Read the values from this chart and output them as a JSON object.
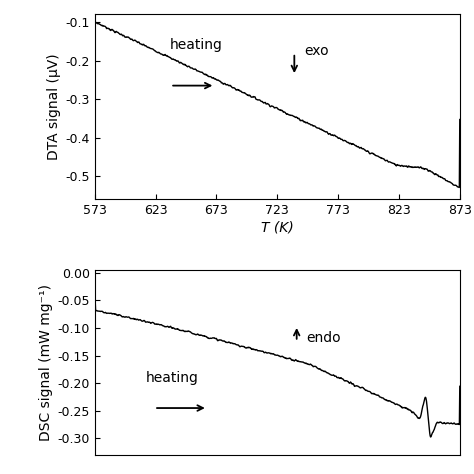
{
  "top_panel": {
    "xlabel": "T (K)",
    "ylabel": "DTA signal (μV)",
    "xticks": [
      573,
      623,
      673,
      723,
      773,
      823,
      873
    ],
    "yticks": [
      -0.1,
      -0.2,
      -0.3,
      -0.4,
      -0.5
    ],
    "xlim": [
      573,
      873
    ],
    "ylim": [
      -0.56,
      -0.08
    ],
    "line_color": "#000000"
  },
  "bottom_panel": {
    "ylabel": "DSC signal (mW mg⁻¹)",
    "xticks": [],
    "yticks": [
      0.0,
      -0.05,
      -0.1,
      -0.15,
      -0.2,
      -0.25,
      -0.3
    ],
    "xlim": [
      573,
      893
    ],
    "ylim": [
      -0.33,
      0.005
    ],
    "line_color": "#000000"
  },
  "fig_bg": "#ffffff",
  "axes_bg": "#ffffff",
  "font_size": 10,
  "tick_font_size": 9
}
